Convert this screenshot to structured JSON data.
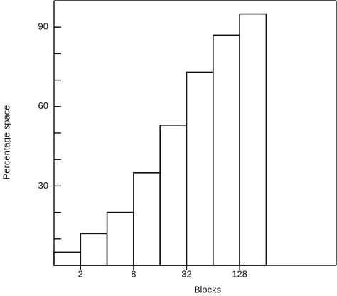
{
  "chart_data": {
    "type": "bar",
    "x_label": "Blocks",
    "y_label": "Percentage space",
    "categories": [
      null,
      "2",
      null,
      "8",
      null,
      "32",
      null,
      "128"
    ],
    "values": [
      5,
      12,
      20,
      35,
      53,
      73,
      87,
      95
    ],
    "color": "#ffffff",
    "ylim": [
      0,
      100
    ],
    "yticks": [
      30,
      60,
      90
    ],
    "yminor_ticks": [
      10,
      20,
      40,
      50,
      70,
      80
    ],
    "grid": false
  }
}
